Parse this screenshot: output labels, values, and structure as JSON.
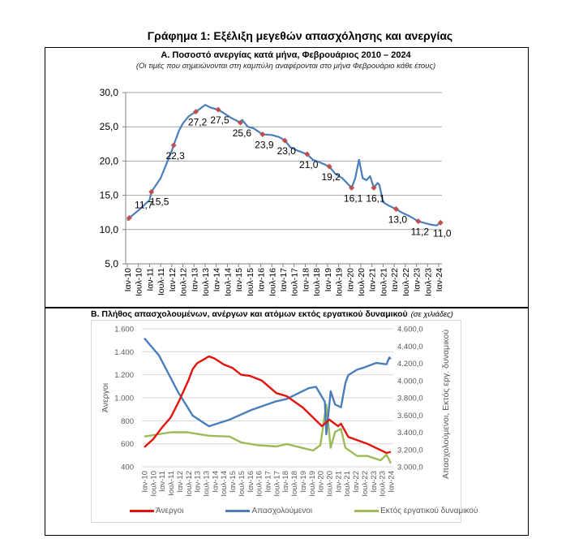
{
  "title": "Γράφημα 1: Εξέλιξη μεγεθών απασχόλησης και ανεργίας",
  "colors": {
    "line_a": "#4a7ebb",
    "marker_a": "#c0504d",
    "unemployed": "#e3120b",
    "employed": "#4a7ebb",
    "inactive": "#9bbb59"
  },
  "chart_data": [
    {
      "type": "line",
      "title": "Α. Ποσοστό ανεργίας κατά μήνα, Φεβρουάριος 2010 – 2024",
      "subtitle": "(Οι τιμές που σημειώνονται στη καμπύλη αναφέρονται στο μήνα Φεβρουάριο κάθε έτους)",
      "ylim": [
        5,
        30
      ],
      "yticks": [
        "5,0",
        "10,0",
        "15,0",
        "20,0",
        "25,0",
        "30,0"
      ],
      "ytick_values": [
        5,
        10,
        15,
        20,
        25,
        30
      ],
      "xticks": [
        "Ιαν-10",
        "Ιουλ-10",
        "Ιαν-11",
        "Ιουλ-11",
        "Ιαν-12",
        "Ιουλ-12",
        "Ιαν-13",
        "Ιουλ-13",
        "Ιαν-14",
        "Ιουλ-14",
        "Ιαν-15",
        "Ιουλ-15",
        "Ιαν-16",
        "Ιουλ-16",
        "Ιαν-17",
        "Ιουλ-17",
        "Ιαν-18",
        "Ιουλ-18",
        "Ιαν-19",
        "Ιουλ-19",
        "Ιαν-20",
        "Ιουλ-20",
        "Ιαν-21",
        "Ιουλ-21",
        "Ιαν-22",
        "Ιουλ-22",
        "Ιαν-23",
        "Ιουλ-23",
        "Ιαν-24"
      ],
      "grid": true,
      "series": [
        {
          "name": "Ποσοστό ανεργίας",
          "points": [
            [
              "2010-01",
              11.3
            ],
            [
              "2010-02",
              11.7
            ],
            [
              "2010-07",
              12.8
            ],
            [
              "2011-01",
              14.3
            ],
            [
              "2011-02",
              15.5
            ],
            [
              "2011-07",
              17.5
            ],
            [
              "2011-10",
              19.5
            ],
            [
              "2012-01",
              21.5
            ],
            [
              "2012-02",
              22.3
            ],
            [
              "2012-05",
              24.5
            ],
            [
              "2012-07",
              25.5
            ],
            [
              "2012-10",
              26.5
            ],
            [
              "2013-02",
              27.2
            ],
            [
              "2013-05",
              27.8
            ],
            [
              "2013-07",
              28.2
            ],
            [
              "2013-10",
              27.8
            ],
            [
              "2014-02",
              27.5
            ],
            [
              "2014-05",
              27.0
            ],
            [
              "2014-09",
              26.3
            ],
            [
              "2015-02",
              25.6
            ],
            [
              "2015-03",
              26.0
            ],
            [
              "2015-06",
              25.0
            ],
            [
              "2015-09",
              24.8
            ],
            [
              "2016-02",
              23.9
            ],
            [
              "2016-07",
              23.8
            ],
            [
              "2016-11",
              23.5
            ],
            [
              "2017-02",
              23.0
            ],
            [
              "2017-05",
              22.0
            ],
            [
              "2017-09",
              21.5
            ],
            [
              "2018-02",
              21.0
            ],
            [
              "2018-05",
              20.2
            ],
            [
              "2018-09",
              19.8
            ],
            [
              "2019-02",
              19.2
            ],
            [
              "2019-05",
              18.2
            ],
            [
              "2019-09",
              17.5
            ],
            [
              "2020-02",
              16.1
            ],
            [
              "2020-04",
              17.5
            ],
            [
              "2020-06",
              20.2
            ],
            [
              "2020-08",
              17.5
            ],
            [
              "2020-10",
              17.2
            ],
            [
              "2020-12",
              17.8
            ],
            [
              "2021-02",
              16.1
            ],
            [
              "2021-04",
              16.8
            ],
            [
              "2021-05",
              16.5
            ],
            [
              "2021-07",
              14.0
            ],
            [
              "2021-10",
              13.5
            ],
            [
              "2022-02",
              13.0
            ],
            [
              "2022-05",
              12.5
            ],
            [
              "2022-09",
              12.0
            ],
            [
              "2023-02",
              11.2
            ],
            [
              "2023-05",
              11.0
            ],
            [
              "2023-09",
              10.7
            ],
            [
              "2023-12",
              10.6
            ],
            [
              "2024-02",
              11.0
            ]
          ]
        }
      ],
      "labeled_points": [
        {
          "date": "2010-02",
          "value": 11.7,
          "label": "11,7"
        },
        {
          "date": "2011-02",
          "value": 15.5,
          "label": "15,5"
        },
        {
          "date": "2012-02",
          "value": 22.3,
          "label": "22,3"
        },
        {
          "date": "2013-02",
          "value": 27.2,
          "label": "27,2"
        },
        {
          "date": "2014-02",
          "value": 27.5,
          "label": "27,5"
        },
        {
          "date": "2015-02",
          "value": 25.6,
          "label": "25,6"
        },
        {
          "date": "2016-02",
          "value": 23.9,
          "label": "23,9"
        },
        {
          "date": "2017-02",
          "value": 23.0,
          "label": "23,0"
        },
        {
          "date": "2018-02",
          "value": 21.0,
          "label": "21,0"
        },
        {
          "date": "2019-02",
          "value": 19.2,
          "label": "19,2"
        },
        {
          "date": "2020-02",
          "value": 16.1,
          "label": "16,1"
        },
        {
          "date": "2021-02",
          "value": 16.1,
          "label": "16,1"
        },
        {
          "date": "2022-02",
          "value": 13.0,
          "label": "13,0"
        },
        {
          "date": "2023-02",
          "value": 11.2,
          "label": "11,2"
        },
        {
          "date": "2024-02",
          "value": 11.0,
          "label": "11,0"
        }
      ]
    },
    {
      "type": "line",
      "title": "Β. Πλήθος απασχολουμένων, ανέργων και ατόμων εκτός εργατικού δυναμικού",
      "title_note": "(σε χιλιάδες)",
      "ylabel": "Άνεργοι",
      "ylabel_right": "Απασχολούμενοι, Εκτός εργ. δυναμικού",
      "ylim": [
        400,
        1600
      ],
      "ylim_right": [
        3000,
        4600
      ],
      "yticks": [
        "400",
        "600",
        "800",
        "1.000",
        "1.200",
        "1.400",
        "1.600"
      ],
      "ytick_values": [
        400,
        600,
        800,
        1000,
        1200,
        1400,
        1600
      ],
      "yticks_right": [
        "3.000,0",
        "3.200,0",
        "3.400,0",
        "3.600,0",
        "3.800,0",
        "4.000,0",
        "4.200,0",
        "4.400,0",
        "4.600,0"
      ],
      "ytick_values_right": [
        3000,
        3200,
        3400,
        3600,
        3800,
        4000,
        4200,
        4400,
        4600
      ],
      "xticks": [
        "Ιαν-10",
        "Ιουλ-10",
        "Ιαν-11",
        "Ιουλ-11",
        "Ιαν-12",
        "Ιουλ-12",
        "Ιαν-13",
        "Ιουλ-13",
        "Ιαν-14",
        "Ιουλ-14",
        "Ιαν-15",
        "Ιουλ-15",
        "Ιαν-16",
        "Ιουλ-16",
        "Ιαν-17",
        "Ιουλ-17",
        "Ιαν-18",
        "Ιουλ-18",
        "Ιαν-19",
        "Ιουλ-19",
        "Ιαν-20",
        "Ιουλ-20",
        "Ιαν-21",
        "Ιουλ-21",
        "Ιαν-22",
        "Ιουλ-22",
        "Ιαν-23",
        "Ιουλ-23",
        "Ιαν-24"
      ],
      "grid": true,
      "legend_position": "bottom",
      "series": [
        {
          "name": "Άνεργοι",
          "axis": "left",
          "points": [
            [
              "2010-01",
              570
            ],
            [
              "2010-07",
              640
            ],
            [
              "2011-01",
              740
            ],
            [
              "2011-07",
              830
            ],
            [
              "2012-01",
              980
            ],
            [
              "2012-07",
              1150
            ],
            [
              "2012-10",
              1250
            ],
            [
              "2013-01",
              1300
            ],
            [
              "2013-05",
              1330
            ],
            [
              "2013-09",
              1360
            ],
            [
              "2014-01",
              1340
            ],
            [
              "2014-07",
              1290
            ],
            [
              "2015-01",
              1260
            ],
            [
              "2015-07",
              1200
            ],
            [
              "2016-01",
              1190
            ],
            [
              "2016-09",
              1150
            ],
            [
              "2017-07",
              1040
            ],
            [
              "2018-02",
              1014
            ],
            [
              "2019-01",
              915
            ],
            [
              "2020-02",
              753
            ],
            [
              "2020-07",
              810
            ],
            [
              "2021-01",
              753
            ],
            [
              "2021-03",
              775
            ],
            [
              "2021-08",
              660
            ],
            [
              "2022-09",
              600
            ],
            [
              "2023-10",
              520
            ],
            [
              "2024-01",
              530
            ]
          ]
        },
        {
          "name": "Απασχολούμενοι",
          "axis": "right",
          "points": [
            [
              "2010-01",
              4490
            ],
            [
              "2010-11",
              4290
            ],
            [
              "2011-12",
              3866
            ],
            [
              "2012-10",
              3593
            ],
            [
              "2013-09",
              3470
            ],
            [
              "2014-11",
              3546
            ],
            [
              "2016-02",
              3659
            ],
            [
              "2017-07",
              3760
            ],
            [
              "2018-02",
              3785
            ],
            [
              "2019-05",
              3911
            ],
            [
              "2019-10",
              3927
            ],
            [
              "2020-04",
              3753
            ],
            [
              "2020-05",
              3376
            ],
            [
              "2020-08",
              3875
            ],
            [
              "2020-11",
              3722
            ],
            [
              "2021-03",
              3690
            ],
            [
              "2021-06",
              3969
            ],
            [
              "2021-08",
              4063
            ],
            [
              "2022-02",
              4126
            ],
            [
              "2022-06",
              4146
            ],
            [
              "2023-03",
              4204
            ],
            [
              "2023-10",
              4188
            ],
            [
              "2023-12",
              4267
            ],
            [
              "2024-01",
              4250
            ]
          ]
        },
        {
          "name": "Εκτός εργατικού δυναμικού",
          "axis": "right",
          "points": [
            [
              "2010-01",
              3350
            ],
            [
              "2011-07",
              3400
            ],
            [
              "2012-06",
              3400
            ],
            [
              "2013-09",
              3360
            ],
            [
              "2014-11",
              3350
            ],
            [
              "2015-07",
              3282
            ],
            [
              "2016-06",
              3250
            ],
            [
              "2017-07",
              3235
            ],
            [
              "2018-02",
              3263
            ],
            [
              "2019-08",
              3188
            ],
            [
              "2020-01",
              3250
            ],
            [
              "2020-05",
              3722
            ],
            [
              "2020-08",
              3220
            ],
            [
              "2020-11",
              3404
            ],
            [
              "2021-03",
              3440
            ],
            [
              "2021-06",
              3220
            ],
            [
              "2022-02",
              3125
            ],
            [
              "2022-09",
              3125
            ],
            [
              "2023-06",
              3075
            ],
            [
              "2023-10",
              3140
            ],
            [
              "2024-01",
              3040
            ]
          ]
        }
      ],
      "legend": [
        "Άνεργοι",
        "Απασχολούμενοι",
        "Εκτός εργατικού δυναμικού"
      ]
    }
  ]
}
